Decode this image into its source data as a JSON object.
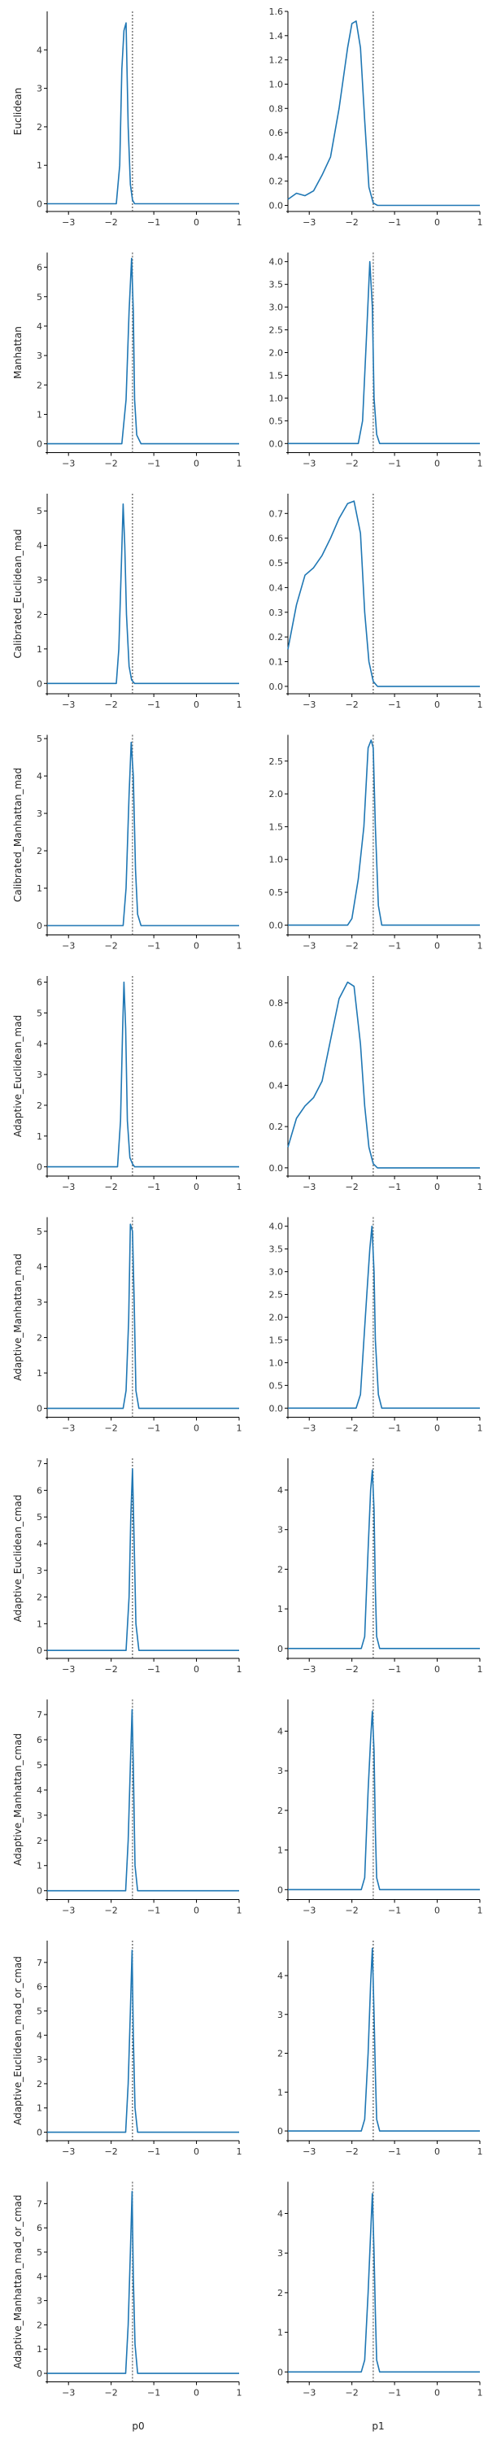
{
  "colors": {
    "line": "#1f77b4",
    "truth": "#555555",
    "axis": "#000000"
  },
  "chart_data": {
    "type": "line",
    "layout": "grid 10x2",
    "columns": [
      "p0",
      "p1"
    ],
    "rows": [
      "Euclidean",
      "Manhattan",
      "Calibrated_Euclidean_mad",
      "Calibrated_Manhattan_mad",
      "Adaptive_Euclidean_mad",
      "Adaptive_Manhattan_mad",
      "Adaptive_Euclidean_cmad",
      "Adaptive_Manhattan_cmad",
      "Adaptive_Euclidean_mad_or_cmad",
      "Adaptive_Manhattan_mad_or_cmad"
    ],
    "xlim": [
      -3.5,
      1
    ],
    "xticks": [
      -3,
      -2,
      -1,
      0,
      1
    ],
    "reference_x": -1.5,
    "panels": [
      {
        "row": 0,
        "col": 0,
        "ylim": [
          -0.2,
          5.0
        ],
        "yticks": [
          0,
          1,
          2,
          3,
          4
        ],
        "x": [
          -3.5,
          -1.88,
          -1.8,
          -1.75,
          -1.7,
          -1.65,
          -1.6,
          -1.55,
          -1.5,
          -1.45,
          1
        ],
        "y": [
          0,
          0,
          1.0,
          3.5,
          4.5,
          4.7,
          2.0,
          0.5,
          0.1,
          0,
          0
        ]
      },
      {
        "row": 0,
        "col": 1,
        "ylim": [
          -0.05,
          1.6
        ],
        "yticks": [
          0.0,
          0.2,
          0.4,
          0.6,
          0.8,
          1.0,
          1.2,
          1.4,
          1.6
        ],
        "x": [
          -3.5,
          -3.3,
          -3.1,
          -2.9,
          -2.7,
          -2.5,
          -2.3,
          -2.1,
          -2.0,
          -1.9,
          -1.8,
          -1.7,
          -1.6,
          -1.5,
          -1.4,
          -1.3,
          1
        ],
        "y": [
          0.05,
          0.1,
          0.08,
          0.12,
          0.25,
          0.4,
          0.8,
          1.3,
          1.5,
          1.52,
          1.3,
          0.7,
          0.15,
          0.02,
          0,
          0,
          0
        ]
      },
      {
        "row": 1,
        "col": 0,
        "ylim": [
          -0.3,
          6.5
        ],
        "yticks": [
          0,
          1,
          2,
          3,
          4,
          5,
          6
        ],
        "x": [
          -3.5,
          -1.75,
          -1.65,
          -1.58,
          -1.52,
          -1.48,
          -1.45,
          -1.4,
          -1.3,
          1
        ],
        "y": [
          0,
          0,
          1.5,
          4.5,
          6.3,
          4.5,
          1.5,
          0.3,
          0,
          0
        ]
      },
      {
        "row": 1,
        "col": 1,
        "ylim": [
          -0.2,
          4.2
        ],
        "yticks": [
          0.0,
          0.5,
          1.0,
          1.5,
          2.0,
          2.5,
          3.0,
          3.5,
          4.0
        ],
        "x": [
          -3.5,
          -1.85,
          -1.75,
          -1.65,
          -1.58,
          -1.52,
          -1.48,
          -1.42,
          -1.35,
          1
        ],
        "y": [
          0,
          0,
          0.5,
          2.5,
          4.0,
          3.0,
          1.0,
          0.2,
          0,
          0
        ]
      },
      {
        "row": 2,
        "col": 0,
        "ylim": [
          -0.3,
          5.5
        ],
        "yticks": [
          0,
          1,
          2,
          3,
          4,
          5
        ],
        "x": [
          -3.5,
          -1.88,
          -1.82,
          -1.76,
          -1.72,
          -1.68,
          -1.64,
          -1.58,
          -1.52,
          -1.45,
          1
        ],
        "y": [
          0,
          0,
          1.0,
          3.5,
          5.2,
          4.0,
          2.0,
          0.5,
          0.1,
          0,
          0
        ]
      },
      {
        "row": 2,
        "col": 1,
        "ylim": [
          -0.03,
          0.78
        ],
        "yticks": [
          0.0,
          0.1,
          0.2,
          0.3,
          0.4,
          0.5,
          0.6,
          0.7
        ],
        "x": [
          -3.5,
          -3.3,
          -3.1,
          -2.9,
          -2.7,
          -2.5,
          -2.3,
          -2.1,
          -1.95,
          -1.8,
          -1.7,
          -1.6,
          -1.5,
          -1.4,
          -1.3,
          1
        ],
        "y": [
          0.15,
          0.33,
          0.45,
          0.48,
          0.53,
          0.6,
          0.68,
          0.74,
          0.75,
          0.62,
          0.3,
          0.1,
          0.02,
          0,
          0,
          0
        ]
      },
      {
        "row": 3,
        "col": 0,
        "ylim": [
          -0.25,
          5.1
        ],
        "yticks": [
          0,
          1,
          2,
          3,
          4,
          5
        ],
        "x": [
          -3.5,
          -1.72,
          -1.65,
          -1.58,
          -1.53,
          -1.48,
          -1.43,
          -1.38,
          -1.3,
          1
        ],
        "y": [
          0,
          0,
          1.0,
          3.5,
          4.9,
          4.0,
          1.5,
          0.3,
          0,
          0
        ]
      },
      {
        "row": 3,
        "col": 1,
        "ylim": [
          -0.15,
          2.9
        ],
        "yticks": [
          0.0,
          0.5,
          1.0,
          1.5,
          2.0,
          2.5
        ],
        "x": [
          -3.5,
          -2.1,
          -2.0,
          -1.85,
          -1.72,
          -1.62,
          -1.55,
          -1.5,
          -1.45,
          -1.38,
          -1.3,
          1
        ],
        "y": [
          0,
          0,
          0.1,
          0.7,
          1.5,
          2.7,
          2.82,
          2.7,
          1.5,
          0.3,
          0,
          0
        ]
      },
      {
        "row": 4,
        "col": 0,
        "ylim": [
          -0.3,
          6.2
        ],
        "yticks": [
          0,
          1,
          2,
          3,
          4,
          5,
          6
        ],
        "x": [
          -3.5,
          -1.85,
          -1.78,
          -1.73,
          -1.7,
          -1.66,
          -1.62,
          -1.56,
          -1.5,
          -1.45,
          1
        ],
        "y": [
          0,
          0,
          1.5,
          4.5,
          6.0,
          4.5,
          1.5,
          0.3,
          0.1,
          0,
          0
        ]
      },
      {
        "row": 4,
        "col": 1,
        "ylim": [
          -0.04,
          0.93
        ],
        "yticks": [
          0.0,
          0.2,
          0.4,
          0.6,
          0.8
        ],
        "x": [
          -3.5,
          -3.3,
          -3.1,
          -2.9,
          -2.7,
          -2.5,
          -2.3,
          -2.1,
          -1.95,
          -1.8,
          -1.7,
          -1.6,
          -1.5,
          -1.4,
          -1.3,
          1
        ],
        "y": [
          0.1,
          0.24,
          0.3,
          0.34,
          0.42,
          0.62,
          0.82,
          0.9,
          0.88,
          0.6,
          0.3,
          0.1,
          0.02,
          0,
          0,
          0
        ]
      },
      {
        "row": 5,
        "col": 0,
        "ylim": [
          -0.25,
          5.4
        ],
        "yticks": [
          0,
          1,
          2,
          3,
          4,
          5
        ],
        "x": [
          -3.5,
          -1.72,
          -1.65,
          -1.59,
          -1.55,
          -1.5,
          -1.46,
          -1.42,
          -1.35,
          1
        ],
        "y": [
          0,
          0,
          0.5,
          2.5,
          5.2,
          5.0,
          3.0,
          0.5,
          0,
          0
        ]
      },
      {
        "row": 5,
        "col": 1,
        "ylim": [
          -0.2,
          4.2
        ],
        "yticks": [
          0.0,
          0.5,
          1.0,
          1.5,
          2.0,
          2.5,
          3.0,
          3.5,
          4.0
        ],
        "x": [
          -3.5,
          -1.9,
          -1.8,
          -1.72,
          -1.65,
          -1.58,
          -1.53,
          -1.48,
          -1.45,
          -1.38,
          -1.3,
          1
        ],
        "y": [
          0,
          0,
          0.3,
          1.5,
          2.5,
          3.5,
          4.0,
          3.0,
          1.5,
          0.3,
          0,
          0
        ]
      },
      {
        "row": 6,
        "col": 0,
        "ylim": [
          -0.3,
          7.2
        ],
        "yticks": [
          0,
          1,
          2,
          3,
          4,
          5,
          6,
          7
        ],
        "x": [
          -3.5,
          -1.65,
          -1.58,
          -1.54,
          -1.5,
          -1.46,
          -1.42,
          -1.35,
          1
        ],
        "y": [
          0,
          0,
          2.0,
          5.0,
          6.8,
          4.0,
          1.0,
          0,
          0
        ]
      },
      {
        "row": 6,
        "col": 1,
        "ylim": [
          -0.25,
          4.8
        ],
        "yticks": [
          0,
          1,
          2,
          3,
          4
        ],
        "x": [
          -3.5,
          -1.78,
          -1.7,
          -1.62,
          -1.56,
          -1.52,
          -1.48,
          -1.45,
          -1.42,
          -1.35,
          1
        ],
        "y": [
          0,
          0,
          0.3,
          2.5,
          4.0,
          4.5,
          3.5,
          1.5,
          0.3,
          0,
          0
        ]
      },
      {
        "row": 7,
        "col": 0,
        "ylim": [
          -0.35,
          7.6
        ],
        "yticks": [
          0,
          1,
          2,
          3,
          4,
          5,
          6,
          7
        ],
        "x": [
          -3.5,
          -1.66,
          -1.6,
          -1.55,
          -1.51,
          -1.48,
          -1.44,
          -1.38,
          1
        ],
        "y": [
          0,
          0,
          2.0,
          5.0,
          7.2,
          5.0,
          1.0,
          0,
          0
        ]
      },
      {
        "row": 7,
        "col": 1,
        "ylim": [
          -0.25,
          4.8
        ],
        "yticks": [
          0,
          1,
          2,
          3,
          4
        ],
        "x": [
          -3.5,
          -1.78,
          -1.7,
          -1.62,
          -1.56,
          -1.52,
          -1.48,
          -1.45,
          -1.42,
          -1.35,
          1
        ],
        "y": [
          0,
          0,
          0.3,
          2.5,
          3.8,
          4.5,
          3.5,
          1.5,
          0.3,
          0,
          0
        ]
      },
      {
        "row": 8,
        "col": 0,
        "ylim": [
          -0.35,
          7.9
        ],
        "yticks": [
          0,
          1,
          2,
          3,
          4,
          5,
          6,
          7
        ],
        "x": [
          -3.5,
          -1.66,
          -1.6,
          -1.55,
          -1.51,
          -1.48,
          -1.44,
          -1.38,
          1
        ],
        "y": [
          0,
          0,
          2.0,
          5.0,
          7.5,
          4.0,
          1.0,
          0,
          0
        ]
      },
      {
        "row": 8,
        "col": 1,
        "ylim": [
          -0.25,
          4.9
        ],
        "yticks": [
          0,
          1,
          2,
          3,
          4
        ],
        "x": [
          -3.5,
          -1.78,
          -1.7,
          -1.62,
          -1.56,
          -1.52,
          -1.48,
          -1.45,
          -1.42,
          -1.35,
          1
        ],
        "y": [
          0,
          0,
          0.3,
          2.0,
          3.8,
          4.7,
          3.0,
          1.5,
          0.3,
          0,
          0
        ]
      },
      {
        "row": 9,
        "col": 0,
        "ylim": [
          -0.35,
          7.9
        ],
        "yticks": [
          0,
          1,
          2,
          3,
          4,
          5,
          6,
          7
        ],
        "x": [
          -3.5,
          -1.66,
          -1.6,
          -1.55,
          -1.51,
          -1.48,
          -1.44,
          -1.38,
          1
        ],
        "y": [
          0,
          0,
          2.0,
          5.0,
          7.5,
          4.0,
          1.2,
          0,
          0
        ]
      },
      {
        "row": 9,
        "col": 1,
        "ylim": [
          -0.25,
          4.8
        ],
        "yticks": [
          0,
          1,
          2,
          3,
          4
        ],
        "x": [
          -3.5,
          -1.78,
          -1.7,
          -1.62,
          -1.56,
          -1.52,
          -1.48,
          -1.45,
          -1.42,
          -1.35,
          1
        ],
        "y": [
          0,
          0,
          0.3,
          2.0,
          3.5,
          4.5,
          3.0,
          1.5,
          0.3,
          0,
          0
        ]
      }
    ]
  }
}
